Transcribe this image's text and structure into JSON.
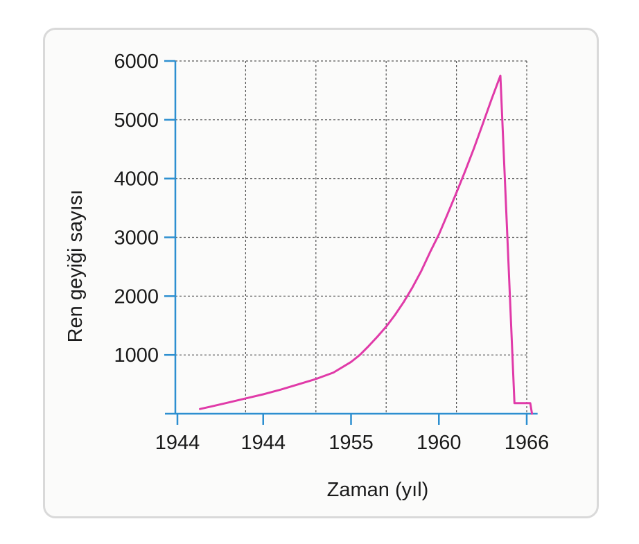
{
  "chart_data": {
    "type": "line",
    "title": "",
    "xlabel": "Zaman (yıl)",
    "ylabel": "Ren geyiği sayısı",
    "x_tick_labels": [
      "1944",
      "1944",
      "1955",
      "1960",
      "1966"
    ],
    "x_tick_positions": [
      0,
      5,
      10,
      15,
      20
    ],
    "y_ticks": [
      1000,
      2000,
      3000,
      4000,
      5000,
      6000
    ],
    "xlim": [
      0,
      20.5
    ],
    "ylim": [
      0,
      6000
    ],
    "grid": true,
    "series": [
      {
        "x": [
          1.4,
          2,
          3,
          4,
          5,
          6,
          7,
          8,
          9,
          10,
          10.5,
          11,
          11.5,
          12,
          12.5,
          13,
          13.5,
          14,
          14.5,
          15,
          15.5,
          16,
          16.5,
          17,
          17.5,
          18,
          18.5,
          18.9,
          19.3,
          19.6,
          20.2,
          20.3
        ],
        "y": [
          80,
          120,
          190,
          260,
          330,
          410,
          500,
          590,
          700,
          880,
          1000,
          1150,
          1310,
          1480,
          1680,
          1900,
          2150,
          2430,
          2750,
          3050,
          3400,
          3760,
          4130,
          4520,
          4930,
          5350,
          5750,
          3000,
          180,
          180,
          180,
          0
        ]
      }
    ],
    "line_color": "#e03aa8",
    "axis_color": "#2d8fd0",
    "grid_color": "#555555"
  }
}
